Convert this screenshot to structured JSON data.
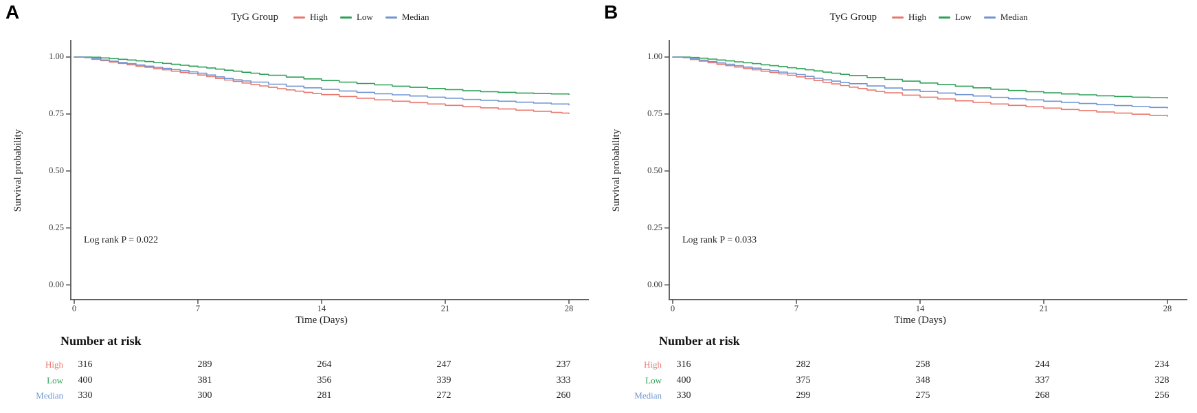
{
  "chart_data": [
    {
      "panel_label": "A",
      "type": "line",
      "subtype": "kaplan-meier-step",
      "legend_title": "TyG Group",
      "xlabel": "Time (Days)",
      "ylabel": "Survival probability",
      "annotation": "Log rank P = 0.022",
      "xlim": [
        0,
        28
      ],
      "ylim": [
        0,
        1
      ],
      "xticks": [
        0,
        7,
        14,
        21,
        28
      ],
      "yticks": [
        1.0,
        0.75,
        0.5,
        0.25,
        0.0
      ],
      "xtick_labels": [
        "0",
        "7",
        "14",
        "21",
        "28"
      ],
      "ytick_labels": [
        "1.00",
        "0.75",
        "0.50",
        "0.25",
        "0.00"
      ],
      "grid": false,
      "legend_position": "top",
      "series": [
        {
          "name": "High",
          "color": "#E9796F",
          "points": [
            [
              0,
              1.0
            ],
            [
              0.6,
              0.997
            ],
            [
              1,
              0.99
            ],
            [
              1.5,
              0.984
            ],
            [
              2,
              0.978
            ],
            [
              2.5,
              0.972
            ],
            [
              3,
              0.966
            ],
            [
              3.5,
              0.96
            ],
            [
              4,
              0.955
            ],
            [
              4.5,
              0.949
            ],
            [
              5,
              0.944
            ],
            [
              5.5,
              0.938
            ],
            [
              6,
              0.932
            ],
            [
              6.5,
              0.927
            ],
            [
              7,
              0.921
            ],
            [
              7.5,
              0.914
            ],
            [
              8,
              0.906
            ],
            [
              8.5,
              0.899
            ],
            [
              9,
              0.893
            ],
            [
              9.5,
              0.886
            ],
            [
              10,
              0.879
            ],
            [
              10.5,
              0.873
            ],
            [
              11,
              0.867
            ],
            [
              11.5,
              0.861
            ],
            [
              12,
              0.856
            ],
            [
              12.5,
              0.85
            ],
            [
              13,
              0.845
            ],
            [
              13.5,
              0.84
            ],
            [
              14,
              0.835
            ],
            [
              15,
              0.827
            ],
            [
              16,
              0.819
            ],
            [
              17,
              0.812
            ],
            [
              18,
              0.806
            ],
            [
              19,
              0.8
            ],
            [
              20,
              0.794
            ],
            [
              21,
              0.788
            ],
            [
              22,
              0.782
            ],
            [
              23,
              0.777
            ],
            [
              24,
              0.772
            ],
            [
              25,
              0.767
            ],
            [
              26,
              0.762
            ],
            [
              27,
              0.757
            ],
            [
              27.6,
              0.754
            ],
            [
              28,
              0.752
            ]
          ]
        },
        {
          "name": "Low",
          "color": "#2FA158",
          "points": [
            [
              0,
              1.0
            ],
            [
              1,
              0.999
            ],
            [
              1.5,
              0.996
            ],
            [
              2,
              0.993
            ],
            [
              2.5,
              0.99
            ],
            [
              3,
              0.987
            ],
            [
              3.5,
              0.983
            ],
            [
              4,
              0.98
            ],
            [
              4.5,
              0.976
            ],
            [
              5,
              0.972
            ],
            [
              5.5,
              0.968
            ],
            [
              6,
              0.964
            ],
            [
              6.5,
              0.96
            ],
            [
              7,
              0.956
            ],
            [
              7.5,
              0.952
            ],
            [
              8,
              0.947
            ],
            [
              8.5,
              0.942
            ],
            [
              9,
              0.938
            ],
            [
              9.5,
              0.933
            ],
            [
              10,
              0.929
            ],
            [
              10.5,
              0.924
            ],
            [
              11,
              0.92
            ],
            [
              12,
              0.912
            ],
            [
              13,
              0.904
            ],
            [
              14,
              0.897
            ],
            [
              15,
              0.89
            ],
            [
              16,
              0.884
            ],
            [
              17,
              0.878
            ],
            [
              18,
              0.872
            ],
            [
              19,
              0.867
            ],
            [
              20,
              0.862
            ],
            [
              21,
              0.857
            ],
            [
              22,
              0.852
            ],
            [
              23,
              0.848
            ],
            [
              24,
              0.845
            ],
            [
              25,
              0.842
            ],
            [
              26,
              0.84
            ],
            [
              27,
              0.838
            ],
            [
              28,
              0.836
            ]
          ]
        },
        {
          "name": "Median",
          "color": "#7195D2",
          "points": [
            [
              0,
              1.0
            ],
            [
              0.6,
              0.998
            ],
            [
              1,
              0.993
            ],
            [
              1.5,
              0.987
            ],
            [
              2,
              0.982
            ],
            [
              2.5,
              0.976
            ],
            [
              3,
              0.971
            ],
            [
              3.5,
              0.965
            ],
            [
              4,
              0.96
            ],
            [
              4.5,
              0.955
            ],
            [
              5,
              0.95
            ],
            [
              5.5,
              0.945
            ],
            [
              6,
              0.94
            ],
            [
              6.5,
              0.935
            ],
            [
              7,
              0.929
            ],
            [
              7.5,
              0.921
            ],
            [
              8,
              0.913
            ],
            [
              8.5,
              0.906
            ],
            [
              9,
              0.9
            ],
            [
              9.5,
              0.895
            ],
            [
              10,
              0.89
            ],
            [
              11,
              0.881
            ],
            [
              12,
              0.872
            ],
            [
              13,
              0.865
            ],
            [
              14,
              0.858
            ],
            [
              15,
              0.851
            ],
            [
              16,
              0.845
            ],
            [
              17,
              0.839
            ],
            [
              18,
              0.834
            ],
            [
              19,
              0.829
            ],
            [
              20,
              0.824
            ],
            [
              21,
              0.819
            ],
            [
              22,
              0.814
            ],
            [
              23,
              0.81
            ],
            [
              24,
              0.806
            ],
            [
              25,
              0.802
            ],
            [
              26,
              0.798
            ],
            [
              27,
              0.794
            ],
            [
              28,
              0.79
            ]
          ]
        }
      ],
      "number_at_risk": {
        "title": "Number at risk",
        "times": [
          0,
          7,
          14,
          21,
          28
        ],
        "rows": [
          {
            "name": "High",
            "values": [
              316,
              289,
              264,
              247,
              237
            ]
          },
          {
            "name": "Low",
            "values": [
              400,
              381,
              356,
              339,
              333
            ]
          },
          {
            "name": "Median",
            "values": [
              330,
              300,
              281,
              272,
              260
            ]
          }
        ]
      }
    },
    {
      "panel_label": "B",
      "type": "line",
      "subtype": "kaplan-meier-step",
      "legend_title": "TyG Group",
      "xlabel": "Time (Days)",
      "ylabel": "Survival probability",
      "annotation": "Log rank P = 0.033",
      "xlim": [
        0,
        28
      ],
      "ylim": [
        0,
        1
      ],
      "xticks": [
        0,
        7,
        14,
        21,
        28
      ],
      "yticks": [
        1.0,
        0.75,
        0.5,
        0.25,
        0.0
      ],
      "xtick_labels": [
        "0",
        "7",
        "14",
        "21",
        "28"
      ],
      "ytick_labels": [
        "1.00",
        "0.75",
        "0.50",
        "0.25",
        "0.00"
      ],
      "grid": false,
      "legend_position": "top",
      "series": [
        {
          "name": "High",
          "color": "#E9796F",
          "points": [
            [
              0,
              1.0
            ],
            [
              0.6,
              0.997
            ],
            [
              1,
              0.989
            ],
            [
              1.5,
              0.982
            ],
            [
              2,
              0.975
            ],
            [
              2.5,
              0.968
            ],
            [
              3,
              0.962
            ],
            [
              3.5,
              0.956
            ],
            [
              4,
              0.95
            ],
            [
              4.5,
              0.944
            ],
            [
              5,
              0.938
            ],
            [
              5.5,
              0.932
            ],
            [
              6,
              0.926
            ],
            [
              6.5,
              0.92
            ],
            [
              7,
              0.913
            ],
            [
              7.5,
              0.905
            ],
            [
              8,
              0.897
            ],
            [
              8.5,
              0.889
            ],
            [
              9,
              0.882
            ],
            [
              9.5,
              0.875
            ],
            [
              10,
              0.868
            ],
            [
              10.5,
              0.862
            ],
            [
              11,
              0.855
            ],
            [
              11.5,
              0.849
            ],
            [
              12,
              0.843
            ],
            [
              13,
              0.833
            ],
            [
              14,
              0.824
            ],
            [
              15,
              0.816
            ],
            [
              16,
              0.808
            ],
            [
              17,
              0.801
            ],
            [
              18,
              0.794
            ],
            [
              19,
              0.788
            ],
            [
              20,
              0.782
            ],
            [
              21,
              0.776
            ],
            [
              22,
              0.77
            ],
            [
              23,
              0.765
            ],
            [
              24,
              0.759
            ],
            [
              25,
              0.754
            ],
            [
              26,
              0.749
            ],
            [
              27,
              0.744
            ],
            [
              28,
              0.74
            ]
          ]
        },
        {
          "name": "Low",
          "color": "#2FA158",
          "points": [
            [
              0,
              1.0
            ],
            [
              1,
              0.998
            ],
            [
              1.5,
              0.995
            ],
            [
              2,
              0.991
            ],
            [
              2.5,
              0.987
            ],
            [
              3,
              0.983
            ],
            [
              3.5,
              0.979
            ],
            [
              4,
              0.975
            ],
            [
              4.5,
              0.971
            ],
            [
              5,
              0.966
            ],
            [
              5.5,
              0.962
            ],
            [
              6,
              0.958
            ],
            [
              6.5,
              0.953
            ],
            [
              7,
              0.949
            ],
            [
              7.5,
              0.944
            ],
            [
              8,
              0.939
            ],
            [
              8.5,
              0.934
            ],
            [
              9,
              0.929
            ],
            [
              9.5,
              0.924
            ],
            [
              10,
              0.919
            ],
            [
              11,
              0.91
            ],
            [
              12,
              0.902
            ],
            [
              13,
              0.894
            ],
            [
              14,
              0.886
            ],
            [
              15,
              0.879
            ],
            [
              16,
              0.872
            ],
            [
              17,
              0.865
            ],
            [
              18,
              0.859
            ],
            [
              19,
              0.853
            ],
            [
              20,
              0.848
            ],
            [
              21,
              0.843
            ],
            [
              22,
              0.838
            ],
            [
              23,
              0.834
            ],
            [
              24,
              0.83
            ],
            [
              25,
              0.827
            ],
            [
              26,
              0.824
            ],
            [
              27,
              0.822
            ],
            [
              28,
              0.82
            ]
          ]
        },
        {
          "name": "Median",
          "color": "#7195D2",
          "points": [
            [
              0,
              1.0
            ],
            [
              0.6,
              0.998
            ],
            [
              1,
              0.992
            ],
            [
              1.5,
              0.986
            ],
            [
              2,
              0.98
            ],
            [
              2.5,
              0.974
            ],
            [
              3,
              0.968
            ],
            [
              3.5,
              0.962
            ],
            [
              4,
              0.956
            ],
            [
              4.5,
              0.951
            ],
            [
              5,
              0.945
            ],
            [
              5.5,
              0.94
            ],
            [
              6,
              0.934
            ],
            [
              6.5,
              0.929
            ],
            [
              7,
              0.923
            ],
            [
              7.5,
              0.915
            ],
            [
              8,
              0.907
            ],
            [
              8.5,
              0.9
            ],
            [
              9,
              0.894
            ],
            [
              9.5,
              0.888
            ],
            [
              10,
              0.883
            ],
            [
              11,
              0.873
            ],
            [
              12,
              0.864
            ],
            [
              13,
              0.856
            ],
            [
              14,
              0.849
            ],
            [
              15,
              0.842
            ],
            [
              16,
              0.835
            ],
            [
              17,
              0.829
            ],
            [
              18,
              0.823
            ],
            [
              19,
              0.817
            ],
            [
              20,
              0.812
            ],
            [
              21,
              0.806
            ],
            [
              22,
              0.801
            ],
            [
              23,
              0.796
            ],
            [
              24,
              0.791
            ],
            [
              25,
              0.787
            ],
            [
              26,
              0.783
            ],
            [
              27,
              0.779
            ],
            [
              28,
              0.776
            ]
          ]
        }
      ],
      "number_at_risk": {
        "title": "Number at risk",
        "times": [
          0,
          7,
          14,
          21,
          28
        ],
        "rows": [
          {
            "name": "High",
            "values": [
              316,
              282,
              258,
              244,
              234
            ]
          },
          {
            "name": "Low",
            "values": [
              400,
              375,
              348,
              337,
              328
            ]
          },
          {
            "name": "Median",
            "values": [
              330,
              299,
              275,
              268,
              256
            ]
          }
        ]
      }
    }
  ]
}
